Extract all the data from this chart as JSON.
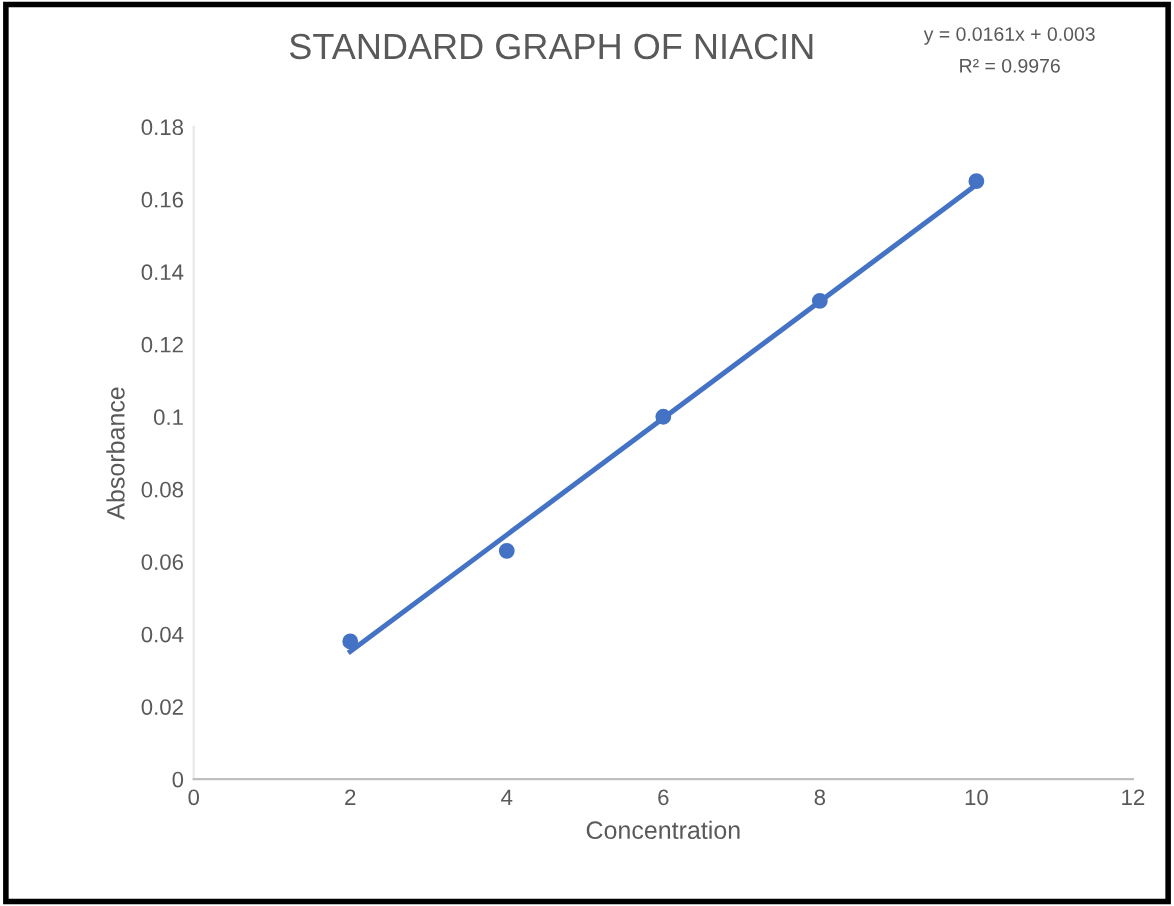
{
  "chart_data": {
    "type": "scatter",
    "title": "STANDARD GRAPH OF NIACIN",
    "xlabel": "Concentration",
    "ylabel": "Absorbance",
    "annotations": [
      "y = 0.0161x + 0.003",
      "R² = 0.9976"
    ],
    "series": [
      {
        "color": "#4472c4",
        "x": [
          2,
          4,
          6,
          8,
          10
        ],
        "values": [
          0.038,
          0.063,
          0.1,
          0.132,
          0.165
        ],
        "marker": "circle"
      },
      {
        "type": "line",
        "color": "#4472c4",
        "x": [
          2,
          10
        ],
        "values": [
          0.0352,
          0.164
        ],
        "line_style": "solid"
      }
    ],
    "xlim": [
      0,
      12
    ],
    "xticks": [
      0,
      2,
      4,
      6,
      8,
      10,
      12
    ],
    "ylim": [
      0,
      0.18
    ],
    "yticks": [
      0,
      0.02,
      0.04,
      0.06,
      0.08,
      0.1,
      0.12,
      0.14,
      0.16,
      0.18
    ],
    "grid": false
  }
}
